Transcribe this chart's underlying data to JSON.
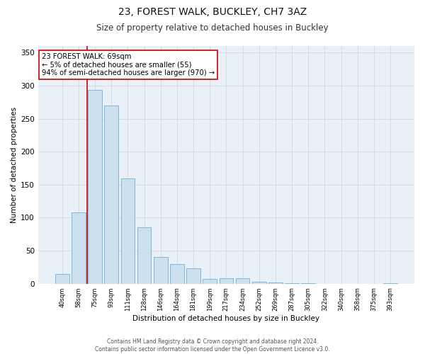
{
  "title": "23, FOREST WALK, BUCKLEY, CH7 3AZ",
  "subtitle": "Size of property relative to detached houses in Buckley",
  "xlabel": "Distribution of detached houses by size in Buckley",
  "ylabel": "Number of detached properties",
  "bar_labels": [
    "40sqm",
    "58sqm",
    "75sqm",
    "93sqm",
    "111sqm",
    "128sqm",
    "146sqm",
    "164sqm",
    "181sqm",
    "199sqm",
    "217sqm",
    "234sqm",
    "252sqm",
    "269sqm",
    "287sqm",
    "305sqm",
    "322sqm",
    "340sqm",
    "358sqm",
    "375sqm",
    "393sqm"
  ],
  "bar_values": [
    15,
    108,
    293,
    270,
    160,
    85,
    40,
    30,
    23,
    7,
    8,
    8,
    3,
    2,
    1,
    1,
    0,
    0,
    0,
    0,
    1
  ],
  "bar_color": "#cde0f0",
  "bar_edge_color": "#7fb8db",
  "property_line_x": 1.5,
  "annotation_text": "23 FOREST WALK: 69sqm\n← 5% of detached houses are smaller (55)\n94% of semi-detached houses are larger (970) →",
  "annotation_box_color": "#ffffff",
  "annotation_box_edge_color": "#cc0000",
  "vline_color": "#cc0000",
  "grid_color": "#d0d8e0",
  "background_color": "#ffffff",
  "plot_bg_color": "#eaf0f8",
  "footer_text": "Contains HM Land Registry data © Crown copyright and database right 2024.\nContains public sector information licensed under the Open Government Licence v3.0.",
  "ylim": [
    0,
    360
  ],
  "yticks": [
    0,
    50,
    100,
    150,
    200,
    250,
    300,
    350
  ]
}
